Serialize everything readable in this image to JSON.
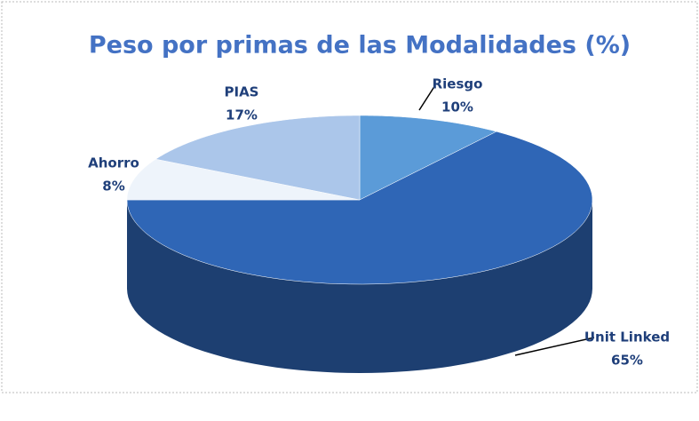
{
  "chart_data": {
    "type": "pie",
    "title": "Peso por primas de las Modalidades  (%)",
    "categories": [
      "Riesgo",
      "Unit Linked",
      "Ahorro",
      "PIAS"
    ],
    "values": [
      10,
      65,
      8,
      17
    ],
    "value_labels": [
      "10%",
      "65%",
      "8%",
      "17%"
    ],
    "colors": [
      "#5b9bd8",
      "#2f66b6",
      "#eef4fb",
      "#abc6ea"
    ]
  }
}
